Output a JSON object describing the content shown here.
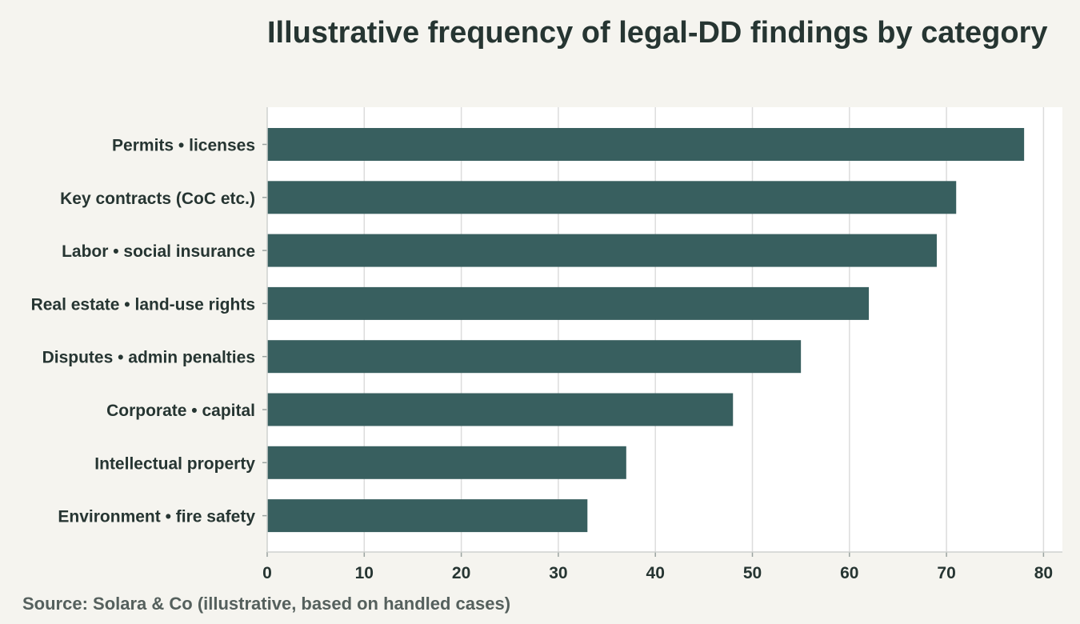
{
  "chart_data": {
    "type": "bar",
    "orientation": "horizontal",
    "title": "Illustrative frequency of legal-DD findings by category",
    "xlabel": "",
    "ylabel": "",
    "categories": [
      "Permits • licenses",
      "Key contracts (CoC etc.)",
      "Labor • social insurance",
      "Real estate • land-use rights",
      "Disputes • admin penalties",
      "Corporate • capital",
      "Intellectual property",
      "Environment • fire safety"
    ],
    "values": [
      78,
      71,
      69,
      62,
      55,
      48,
      37,
      33
    ],
    "xlim": [
      0,
      82
    ],
    "xticks": [
      "0",
      "10",
      "20",
      "30",
      "40",
      "50",
      "60",
      "70",
      "80"
    ],
    "grid": "vertical",
    "legend": "none",
    "colors": {
      "bar": "#385f5f",
      "plot_background": "#ffffff",
      "page_background": "#f5f4ef",
      "grid": "#dcdcdc",
      "text": "#263532"
    }
  },
  "source_note": "Source: Solara & Co (illustrative, based on handled cases)"
}
